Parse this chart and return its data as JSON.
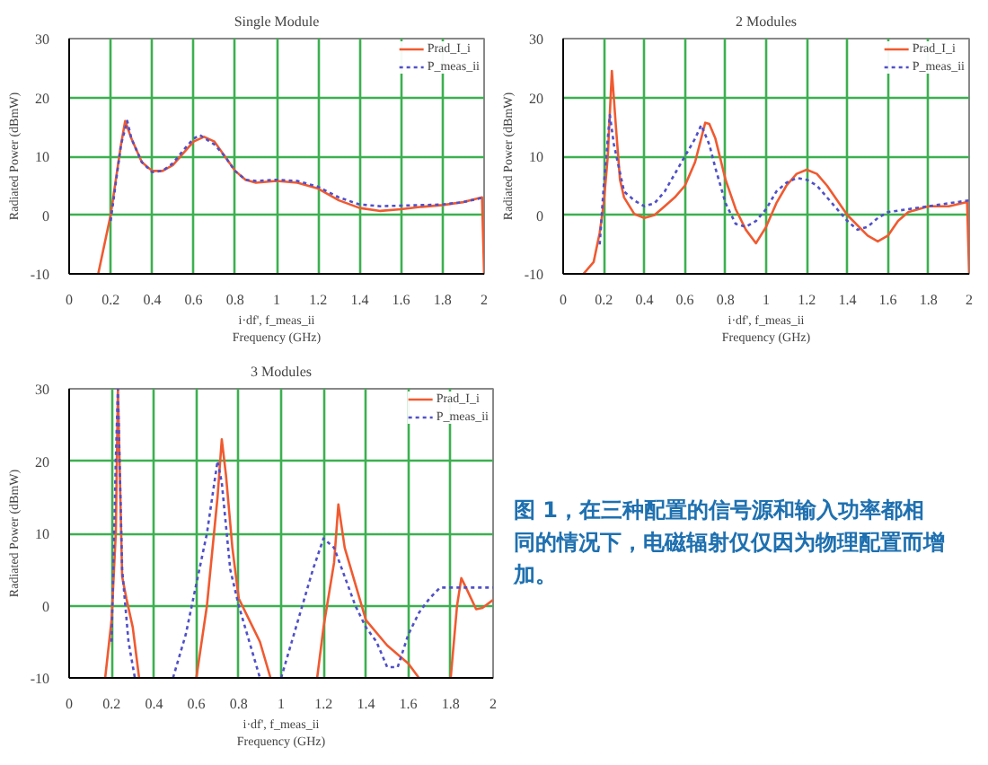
{
  "chart_data": [
    {
      "type": "line",
      "title": "Single Module",
      "xlabel": "i·df', f_meas_ii\nFrequency (GHz)",
      "ylabel": "Radiated Power (dBmW)",
      "xlim": [
        0,
        2
      ],
      "ylim": [
        -10,
        30
      ],
      "xticks": [
        0,
        0.2,
        0.4,
        0.6,
        0.8,
        1,
        1.2,
        1.4,
        1.6,
        1.8,
        2
      ],
      "yticks": [
        -10,
        0,
        10,
        20,
        30
      ],
      "grid": true,
      "legend": "top right",
      "series": [
        {
          "name": "Prad_I_i",
          "color": "#f05a30",
          "line_style": "solid",
          "x": [
            0.14,
            0.2,
            0.25,
            0.27,
            0.3,
            0.35,
            0.4,
            0.45,
            0.5,
            0.55,
            0.6,
            0.65,
            0.7,
            0.75,
            0.8,
            0.85,
            0.9,
            1.0,
            1.1,
            1.2,
            1.3,
            1.4,
            1.5,
            1.6,
            1.7,
            1.8,
            1.9,
            1.99,
            2.0
          ],
          "values": [
            -10,
            0,
            12,
            16,
            13,
            9,
            7.5,
            7.5,
            8.5,
            10.5,
            12.5,
            13.3,
            12.5,
            10,
            7.5,
            6,
            5.5,
            5.8,
            5.5,
            4.5,
            2.5,
            1.2,
            0.7,
            1.0,
            1.4,
            1.7,
            2.2,
            3.0,
            -10
          ]
        },
        {
          "name": "P_meas_ii",
          "color": "#5050c8",
          "line_style": "dotted",
          "x": [
            0.2,
            0.25,
            0.28,
            0.3,
            0.35,
            0.4,
            0.45,
            0.5,
            0.55,
            0.6,
            0.63,
            0.7,
            0.75,
            0.8,
            0.85,
            0.9,
            1.0,
            1.1,
            1.2,
            1.3,
            1.4,
            1.5,
            1.6,
            1.7,
            1.8,
            1.9,
            2.0
          ],
          "values": [
            -1,
            12,
            16,
            13,
            9,
            7.3,
            7.5,
            8.8,
            11,
            13,
            13.6,
            12,
            10,
            7.5,
            6,
            5.8,
            6,
            5.8,
            4.8,
            3,
            1.8,
            1.5,
            1.6,
            1.7,
            1.8,
            2.2,
            3
          ]
        }
      ]
    },
    {
      "type": "line",
      "title": "2 Modules",
      "xlabel": "i·df', f_meas_ii\nFrequency (GHz)",
      "ylabel": "Radiated Power (dBmW)",
      "xlim": [
        0,
        2
      ],
      "ylim": [
        -10,
        30
      ],
      "xticks": [
        0,
        0.2,
        0.4,
        0.6,
        0.8,
        1,
        1.2,
        1.4,
        1.6,
        1.8,
        2
      ],
      "yticks": [
        -10,
        0,
        10,
        20,
        30
      ],
      "grid": true,
      "legend": "top right",
      "series": [
        {
          "name": "Prad_I_i",
          "color": "#f05a30",
          "line_style": "solid",
          "x": [
            0.1,
            0.15,
            0.18,
            0.2,
            0.22,
            0.24,
            0.26,
            0.28,
            0.3,
            0.35,
            0.4,
            0.45,
            0.5,
            0.55,
            0.6,
            0.65,
            0.7,
            0.72,
            0.75,
            0.8,
            0.85,
            0.9,
            0.95,
            1.0,
            1.05,
            1.1,
            1.15,
            1.2,
            1.25,
            1.3,
            1.4,
            1.5,
            1.55,
            1.6,
            1.65,
            1.7,
            1.8,
            1.9,
            1.99,
            2.0
          ],
          "values": [
            -10,
            -8,
            -3,
            2,
            10,
            24.5,
            15,
            6,
            3,
            0.2,
            -0.5,
            0,
            1.5,
            3,
            5,
            9,
            15.7,
            15.5,
            13,
            6,
            1,
            -2.5,
            -4.8,
            -2,
            2,
            5,
            7,
            7.7,
            7,
            5,
            0,
            -3.5,
            -4.5,
            -3.5,
            -1,
            0.5,
            1.5,
            1.5,
            2.2,
            -10
          ]
        },
        {
          "name": "P_meas_ii",
          "color": "#5050c8",
          "line_style": "dotted",
          "x": [
            0.18,
            0.2,
            0.23,
            0.25,
            0.3,
            0.35,
            0.4,
            0.45,
            0.5,
            0.55,
            0.6,
            0.65,
            0.68,
            0.72,
            0.75,
            0.8,
            0.85,
            0.9,
            0.95,
            1.0,
            1.05,
            1.1,
            1.15,
            1.2,
            1.25,
            1.3,
            1.4,
            1.45,
            1.5,
            1.55,
            1.6,
            1.7,
            1.8,
            1.9,
            2.0
          ],
          "values": [
            -5,
            5,
            17,
            12,
            4,
            2.5,
            1.5,
            2,
            4,
            7,
            10,
            13,
            15.3,
            12,
            8,
            2,
            -1.5,
            -2,
            -1,
            1,
            4,
            5.5,
            6.3,
            6,
            5,
            3,
            -1,
            -2.5,
            -2,
            -0.5,
            0.5,
            1.0,
            1.5,
            2,
            2.5
          ]
        }
      ]
    },
    {
      "type": "line",
      "title": "3 Modules",
      "xlabel": "i·df', f_meas_ii\nFrequency (GHz)",
      "ylabel": "Radiated Power (dBmW)",
      "xlim": [
        0,
        2
      ],
      "ylim": [
        -10,
        30
      ],
      "xticks": [
        0,
        0.2,
        0.4,
        0.6,
        0.8,
        1,
        1.2,
        1.4,
        1.6,
        1.8,
        2
      ],
      "yticks": [
        -10,
        0,
        10,
        20,
        30
      ],
      "grid": true,
      "legend": "top right",
      "annotations": [
        "图 1，在三种配置的信号源和输入功率都相同的情况下，电磁辐射仅仅因为物理配置而增加。"
      ],
      "series": [
        {
          "name": "Prad_I_i",
          "color": "#f05a30",
          "line_style": "solid",
          "x": [
            0.17,
            0.2,
            0.22,
            0.23,
            0.25,
            0.27,
            0.3,
            0.33,
            0.45,
            0.6,
            0.65,
            0.7,
            0.72,
            0.74,
            0.77,
            0.8,
            0.85,
            0.9,
            0.95,
            1.05,
            1.17,
            1.2,
            1.25,
            1.27,
            1.3,
            1.35,
            1.4,
            1.5,
            1.6,
            1.65,
            1.7,
            1.8,
            1.83,
            1.85,
            1.88,
            1.92,
            1.95,
            2.0
          ],
          "values": [
            -10,
            -2,
            10,
            30,
            4,
            1,
            -3,
            -10,
            null,
            -10,
            0,
            15,
            23,
            18,
            8,
            1,
            -2,
            -5,
            -10,
            null,
            -10,
            -3,
            6,
            14,
            8,
            3,
            -2,
            -5.5,
            -8,
            -10,
            null,
            -10,
            0,
            3.8,
            2,
            -0.5,
            -0.3,
            0.8
          ]
        },
        {
          "name": "P_meas_ii",
          "color": "#5050c8",
          "line_style": "dotted",
          "x": [
            0.2,
            0.22,
            0.23,
            0.25,
            0.28,
            0.31,
            0.4,
            0.49,
            0.55,
            0.6,
            0.65,
            0.7,
            0.72,
            0.76,
            0.8,
            0.85,
            0.9,
            0.95,
            1.0,
            1.05,
            1.1,
            1.15,
            1.2,
            1.25,
            1.3,
            1.35,
            1.4,
            1.45,
            1.5,
            1.55,
            1.6,
            1.65,
            1.7,
            1.75,
            1.8,
            1.9,
            2.0
          ],
          "values": [
            -5,
            20,
            30,
            5,
            -5,
            -10,
            null,
            -10,
            -4,
            3,
            10,
            20,
            17,
            5,
            0,
            -5,
            -10,
            null,
            -10,
            -5,
            0,
            5,
            9.3,
            8,
            4,
            0,
            -3,
            -5,
            -8.5,
            -8.5,
            -4,
            -1,
            1,
            2.5,
            2.5,
            2.5,
            2.5
          ]
        }
      ]
    }
  ]
}
